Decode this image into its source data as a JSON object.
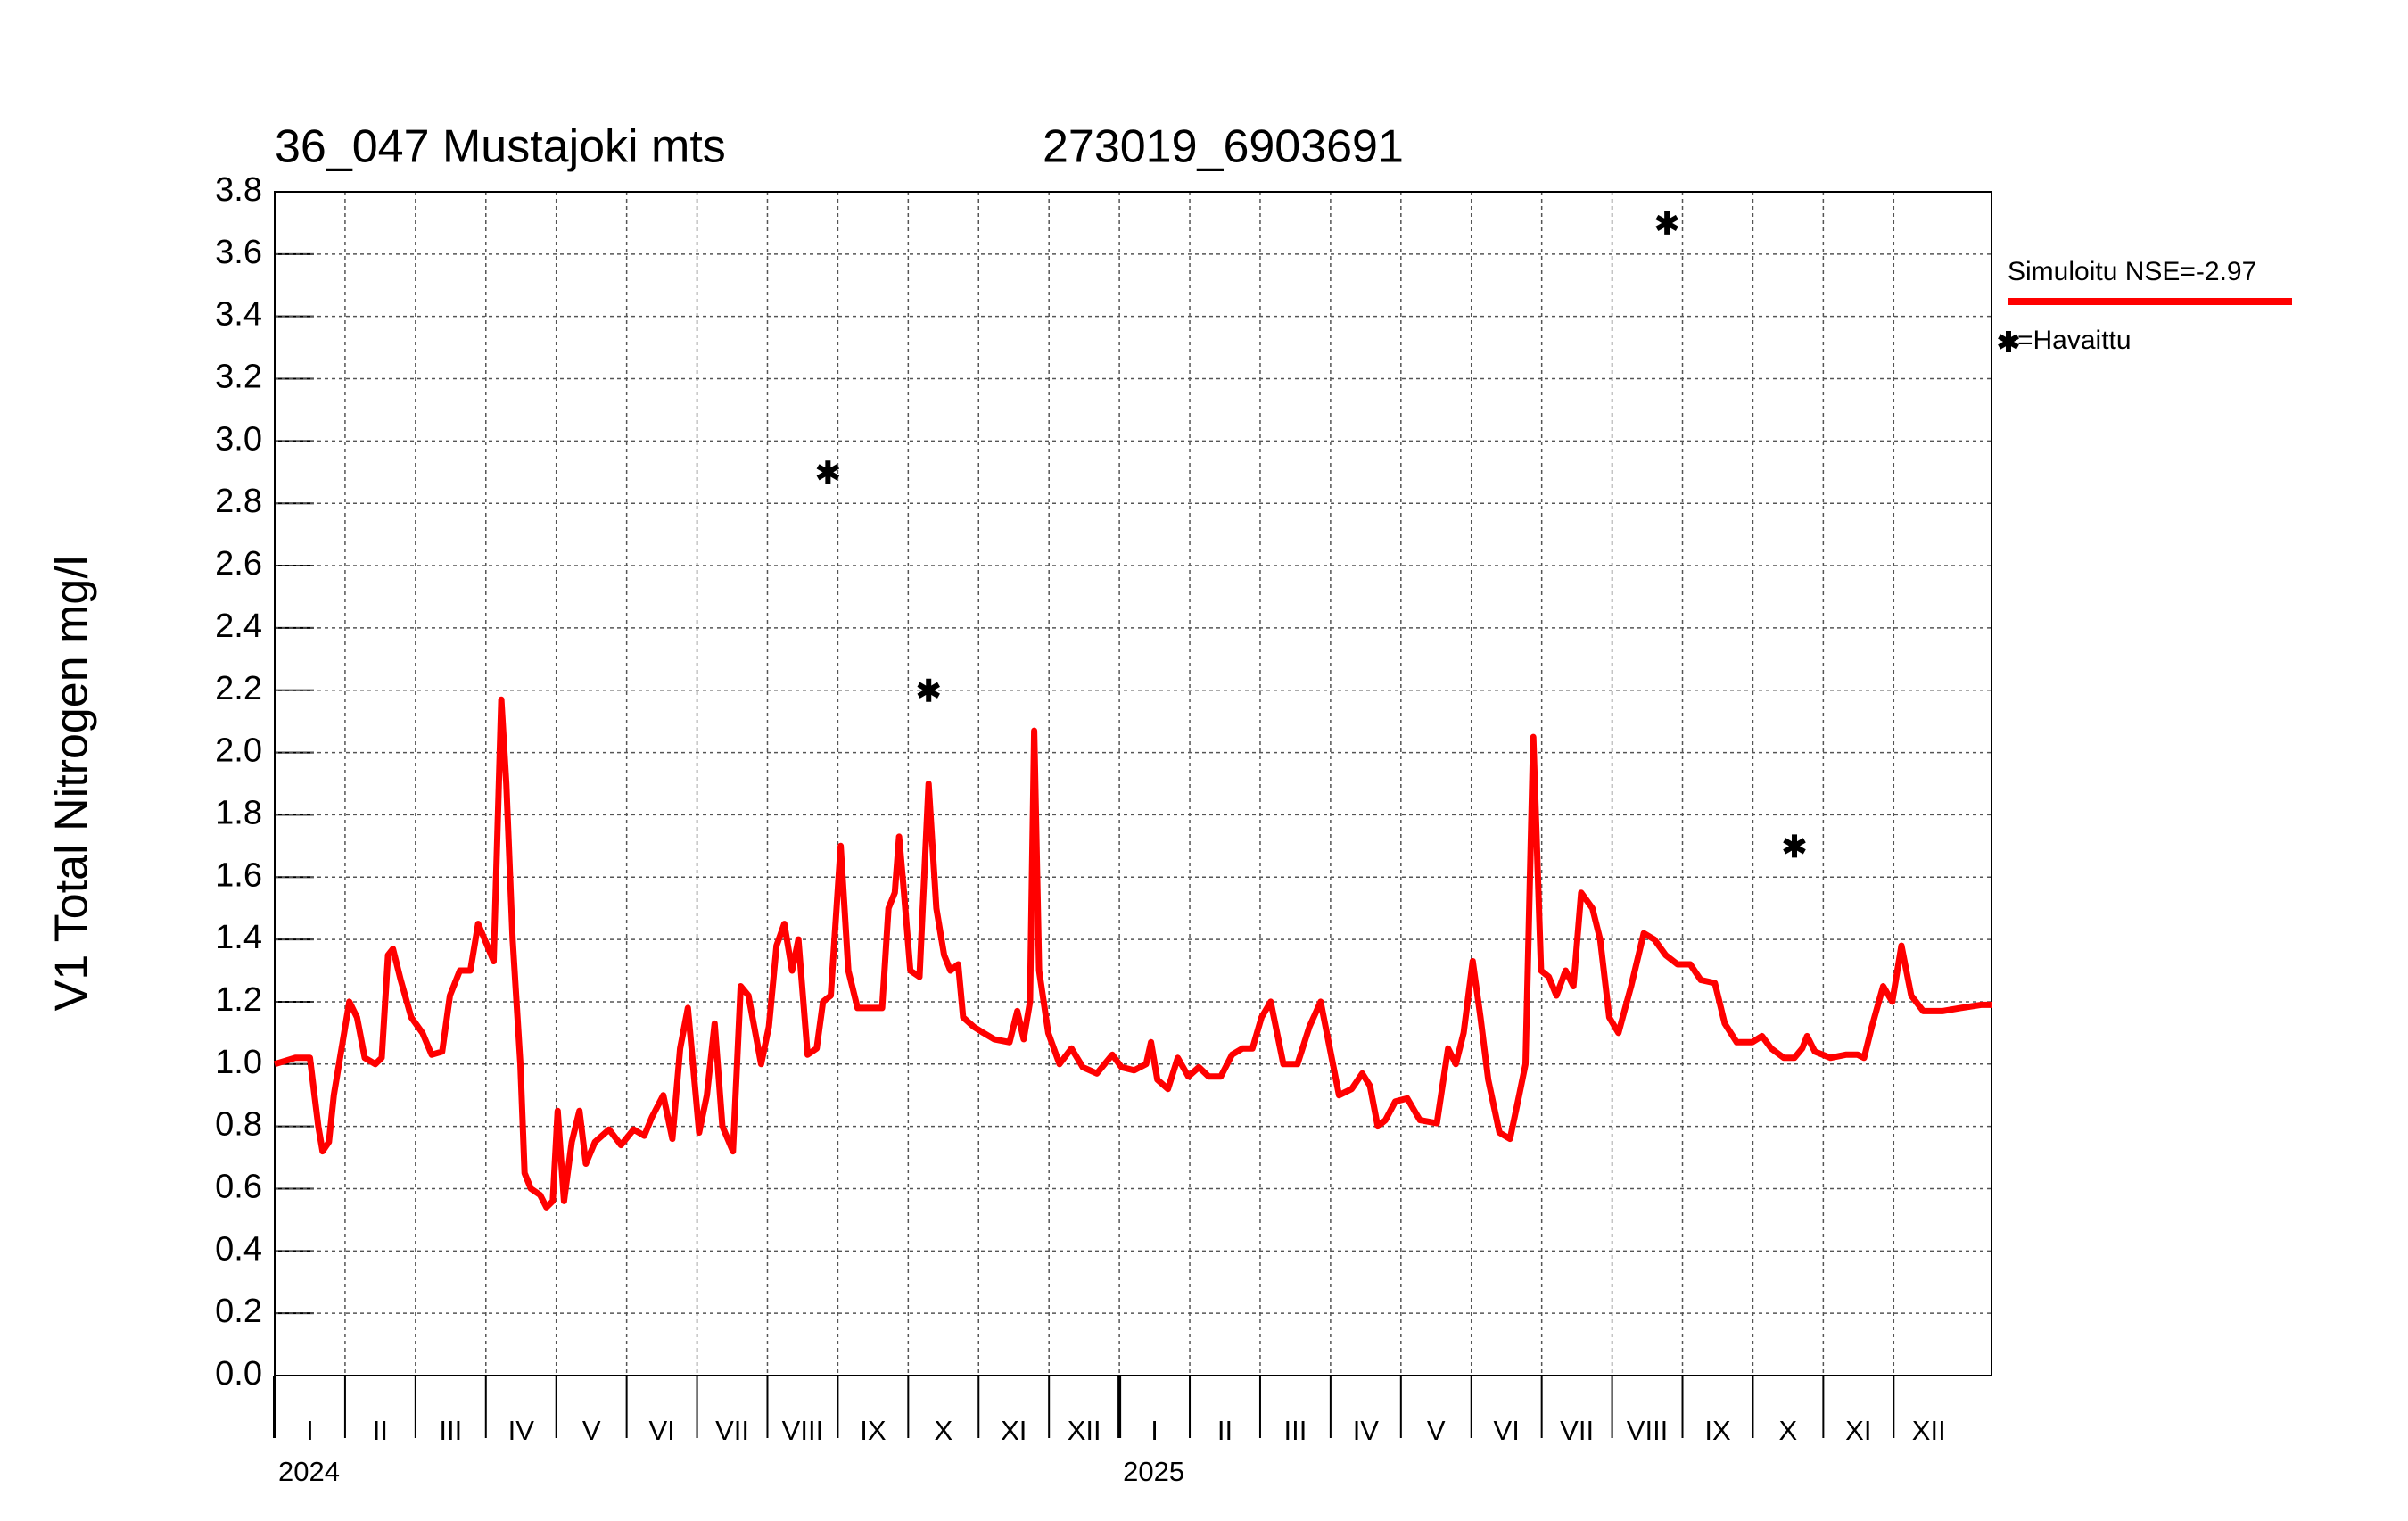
{
  "chart_data": {
    "type": "line",
    "title": "36_047 Mustajoki mts",
    "subtitle": "273019_6903691",
    "y_label": "V1 Total Nitrogen mg/l",
    "grid": true,
    "ylim": [
      0,
      3.8
    ],
    "yticks": [
      {
        "value": 0,
        "label": "0.0"
      },
      0.2,
      0.4,
      0.6,
      0.8,
      {
        "value": 1,
        "label": "1.0"
      },
      1.2,
      1.4,
      1.6,
      1.8,
      {
        "value": 2,
        "label": "2.0"
      },
      2.2,
      2.4,
      2.6,
      2.8,
      {
        "value": 3,
        "label": "3.0"
      },
      3.2,
      3.4,
      3.6,
      3.8
    ],
    "xlim": [
      0,
      24.39
    ],
    "xticks": [
      {
        "value": 0,
        "label": "I"
      },
      {
        "value": 1,
        "label": "II"
      },
      {
        "value": 2,
        "label": "III"
      },
      {
        "value": 3,
        "label": "IV"
      },
      {
        "value": 4,
        "label": "V"
      },
      {
        "value": 5,
        "label": "VI"
      },
      {
        "value": 6,
        "label": "VII"
      },
      {
        "value": 7,
        "label": "VIII"
      },
      {
        "value": 8,
        "label": "IX"
      },
      {
        "value": 9,
        "label": "X"
      },
      {
        "value": 10,
        "label": "XI"
      },
      {
        "value": 11,
        "label": "XII"
      },
      {
        "value": 12,
        "label": "I"
      },
      {
        "value": 13,
        "label": "II"
      },
      {
        "value": 14,
        "label": "III"
      },
      {
        "value": 15,
        "label": "IV"
      },
      {
        "value": 16,
        "label": "V"
      },
      {
        "value": 17,
        "label": "VI"
      },
      {
        "value": 18,
        "label": "VII"
      },
      {
        "value": 19,
        "label": "VIII"
      },
      {
        "value": 20,
        "label": "IX"
      },
      {
        "value": 21,
        "label": "X"
      },
      {
        "value": 22,
        "label": "XI"
      },
      {
        "value": 23,
        "label": "XII"
      }
    ],
    "year_labels": [
      {
        "value": 0,
        "label": "2024"
      },
      {
        "value": 12,
        "label": "2025"
      }
    ],
    "series": [
      {
        "name": "Simuloitu NSE=-2.97",
        "color": "#ff0000",
        "x": [
          0,
          0.29,
          0.5,
          0.62,
          0.68,
          0.77,
          0.84,
          0.95,
          1.06,
          1.17,
          1.28,
          1.43,
          1.52,
          1.61,
          1.68,
          1.79,
          1.94,
          2.1,
          2.23,
          2.38,
          2.49,
          2.63,
          2.78,
          2.89,
          3.02,
          3.11,
          3.22,
          3.29,
          3.38,
          3.49,
          3.55,
          3.64,
          3.77,
          3.86,
          3.95,
          4.02,
          4.11,
          4.22,
          4.33,
          4.42,
          4.55,
          4.75,
          4.92,
          5.1,
          5.25,
          5.36,
          5.52,
          5.65,
          5.76,
          5.87,
          6.03,
          6.14,
          6.25,
          6.36,
          6.51,
          6.62,
          6.73,
          6.91,
          7.02,
          7.13,
          7.24,
          7.35,
          7.44,
          7.57,
          7.7,
          7.79,
          7.9,
          8.04,
          8.15,
          8.28,
          8.45,
          8.63,
          8.72,
          8.81,
          8.87,
          8.94,
          9.03,
          9.16,
          9.29,
          9.4,
          9.51,
          9.6,
          9.71,
          9.78,
          9.93,
          10.07,
          10.22,
          10.44,
          10.55,
          10.64,
          10.73,
          10.79,
          10.86,
          10.99,
          11.15,
          11.32,
          11.48,
          11.68,
          11.9,
          12.03,
          12.21,
          12.38,
          12.45,
          12.54,
          12.69,
          12.83,
          12.98,
          13.13,
          13.27,
          13.44,
          13.6,
          13.75,
          13.89,
          14.02,
          14.15,
          14.33,
          14.53,
          14.7,
          14.86,
          14.99,
          15.12,
          15.3,
          15.45,
          15.56,
          15.67,
          15.78,
          15.92,
          16.09,
          16.27,
          16.51,
          16.67,
          16.78,
          16.89,
          17.02,
          17.13,
          17.24,
          17.4,
          17.55,
          17.68,
          17.77,
          17.88,
          17.99,
          18.1,
          18.21,
          18.34,
          18.45,
          18.56,
          18.72,
          18.83,
          18.96,
          19.09,
          19.27,
          19.45,
          19.6,
          19.76,
          19.93,
          20.11,
          20.26,
          20.46,
          20.6,
          20.77,
          20.99,
          21.13,
          21.26,
          21.44,
          21.59,
          21.7,
          21.77,
          21.88,
          22.1,
          22.32,
          22.49,
          22.58,
          22.69,
          22.85,
          22.98,
          23.11,
          23.25,
          23.42,
          23.69,
          23.95,
          24.24,
          24.39
        ],
        "values": [
          1.0,
          1.02,
          1.02,
          0.8,
          0.72,
          0.75,
          0.9,
          1.05,
          1.2,
          1.15,
          1.02,
          1.0,
          1.02,
          1.35,
          1.37,
          1.27,
          1.15,
          1.1,
          1.03,
          1.04,
          1.22,
          1.3,
          1.3,
          1.45,
          1.38,
          1.33,
          2.17,
          1.9,
          1.4,
          1.0,
          0.65,
          0.6,
          0.58,
          0.54,
          0.56,
          0.85,
          0.56,
          0.75,
          0.85,
          0.68,
          0.75,
          0.79,
          0.74,
          0.79,
          0.77,
          0.83,
          0.9,
          0.76,
          1.05,
          1.18,
          0.78,
          0.9,
          1.13,
          0.8,
          0.72,
          1.25,
          1.22,
          1.0,
          1.12,
          1.38,
          1.45,
          1.3,
          1.4,
          1.03,
          1.05,
          1.2,
          1.22,
          1.7,
          1.3,
          1.18,
          1.18,
          1.18,
          1.5,
          1.55,
          1.73,
          1.55,
          1.3,
          1.28,
          1.9,
          1.5,
          1.35,
          1.3,
          1.32,
          1.15,
          1.12,
          1.1,
          1.08,
          1.07,
          1.17,
          1.08,
          1.2,
          2.07,
          1.3,
          1.1,
          1.0,
          1.05,
          0.99,
          0.97,
          1.03,
          0.99,
          0.98,
          1.0,
          1.07,
          0.95,
          0.92,
          1.02,
          0.96,
          0.99,
          0.96,
          0.96,
          1.03,
          1.05,
          1.05,
          1.15,
          1.2,
          1.0,
          1.0,
          1.12,
          1.2,
          1.05,
          0.9,
          0.92,
          0.97,
          0.93,
          0.8,
          0.82,
          0.88,
          0.89,
          0.82,
          0.81,
          1.05,
          1.0,
          1.1,
          1.33,
          1.15,
          0.95,
          0.78,
          0.76,
          0.9,
          1.0,
          2.05,
          1.3,
          1.28,
          1.22,
          1.3,
          1.25,
          1.55,
          1.5,
          1.4,
          1.15,
          1.1,
          1.25,
          1.42,
          1.4,
          1.35,
          1.32,
          1.32,
          1.27,
          1.26,
          1.13,
          1.07,
          1.07,
          1.09,
          1.05,
          1.02,
          1.02,
          1.05,
          1.09,
          1.04,
          1.02,
          1.03,
          1.03,
          1.02,
          1.12,
          1.25,
          1.2,
          1.38,
          1.22,
          1.17,
          1.17,
          1.18,
          1.19,
          1.19
        ]
      },
      {
        "name": "=Havaittu",
        "color": "#000000",
        "marker": "asterisk",
        "x": [
          7.86,
          9.29,
          19.78,
          21.59
        ],
        "values": [
          2.9,
          2.2,
          3.7,
          1.7
        ]
      }
    ]
  }
}
